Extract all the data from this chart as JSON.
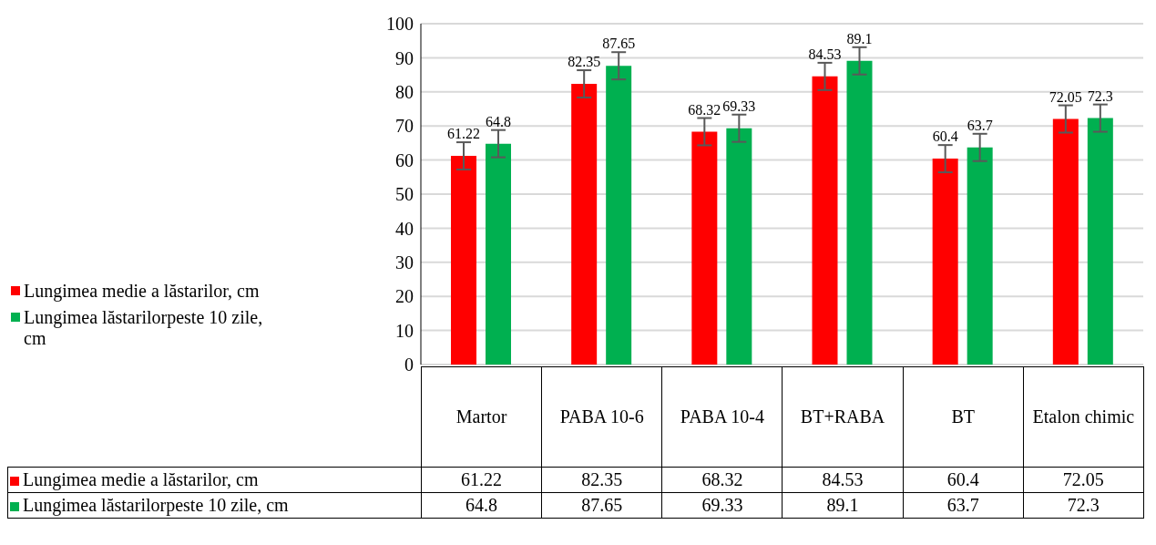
{
  "chart_data": {
    "type": "bar",
    "categories": [
      "Martor",
      "PABA 10-6",
      "PABA 10-4",
      "BT+RABA",
      "BT",
      "Etalon chimic"
    ],
    "series": [
      {
        "name": "Lungimea medie a lăstarilor, cm",
        "color": "#ff0000",
        "values": [
          61.22,
          82.35,
          68.32,
          84.53,
          60.4,
          72.05
        ],
        "errors": [
          4,
          4,
          4,
          4,
          4,
          4
        ],
        "value_labels": [
          "61.22",
          "82.35",
          "68.32",
          "84.53",
          "60.4",
          "72.05"
        ]
      },
      {
        "name": "Lungimea lăstarilorpeste 10 zile, cm",
        "color": "#00b050",
        "values": [
          64.8,
          87.65,
          69.33,
          89.1,
          63.7,
          72.3
        ],
        "errors": [
          4,
          4,
          4,
          4,
          4,
          4
        ],
        "value_labels": [
          "64.8",
          "87.65",
          "69.33",
          "89.1",
          "63.7",
          "72.3"
        ]
      }
    ],
    "annotations": [
      "61.22",
      "82.35",
      "68.32",
      "84.53",
      "60.4",
      "72.05",
      "64.8",
      "87.65",
      "69.33",
      "89.1",
      "63.7",
      "72.3"
    ],
    "ylim": [
      0,
      100
    ],
    "yticks": [
      0,
      10,
      20,
      30,
      40,
      50,
      60,
      70,
      80,
      90,
      100
    ],
    "grid": "y",
    "legend": "left"
  }
}
